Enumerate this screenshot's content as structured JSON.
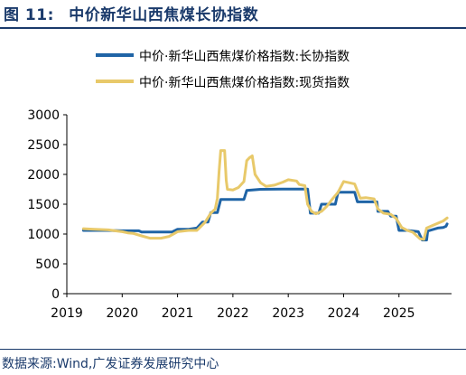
{
  "header": {
    "figure_label": "图 11:",
    "title": "中价新华山西焦煤长协指数"
  },
  "source": "数据来源:Wind,广发证券发展研究中心",
  "colors": {
    "title": "#1a3a6b",
    "series_long": "#1f64a6",
    "series_spot": "#e8c96a",
    "axis": "#000000"
  },
  "chart_data": {
    "type": "line",
    "xlabel": "",
    "ylabel": "",
    "xlim": [
      2019.0,
      2025.95
    ],
    "ylim": [
      0,
      3000
    ],
    "x_ticks": [
      "2019",
      "2020",
      "2021",
      "2022",
      "2023",
      "2024",
      "2025"
    ],
    "y_ticks": [
      "0",
      "500",
      "1000",
      "1500",
      "2000",
      "2500",
      "3000"
    ],
    "grid": false,
    "legend": "top",
    "series": [
      {
        "name": "中价·新华山西焦煤价格指数:长协指数",
        "color": "#1f64a6",
        "points": [
          [
            2019.3,
            1060
          ],
          [
            2019.5,
            1060
          ],
          [
            2019.75,
            1060
          ],
          [
            2020.0,
            1055
          ],
          [
            2020.3,
            1055
          ],
          [
            2020.35,
            1035
          ],
          [
            2020.8,
            1035
          ],
          [
            2020.9,
            1035
          ],
          [
            2021.0,
            1080
          ],
          [
            2021.2,
            1080
          ],
          [
            2021.35,
            1100
          ],
          [
            2021.45,
            1200
          ],
          [
            2021.55,
            1200
          ],
          [
            2021.6,
            1360
          ],
          [
            2021.72,
            1360
          ],
          [
            2021.78,
            1580
          ],
          [
            2022.2,
            1580
          ],
          [
            2022.25,
            1730
          ],
          [
            2022.5,
            1750
          ],
          [
            2022.9,
            1755
          ],
          [
            2023.35,
            1755
          ],
          [
            2023.4,
            1350
          ],
          [
            2023.55,
            1350
          ],
          [
            2023.6,
            1500
          ],
          [
            2023.85,
            1500
          ],
          [
            2023.9,
            1700
          ],
          [
            2024.2,
            1700
          ],
          [
            2024.25,
            1540
          ],
          [
            2024.6,
            1540
          ],
          [
            2024.62,
            1380
          ],
          [
            2024.8,
            1380
          ],
          [
            2024.85,
            1300
          ],
          [
            2024.95,
            1300
          ],
          [
            2025.0,
            1060
          ],
          [
            2025.15,
            1060
          ],
          [
            2025.35,
            1040
          ],
          [
            2025.42,
            900
          ],
          [
            2025.5,
            900
          ],
          [
            2025.52,
            1050
          ],
          [
            2025.7,
            1100
          ],
          [
            2025.8,
            1110
          ],
          [
            2025.85,
            1130
          ],
          [
            2025.87,
            1170
          ]
        ]
      },
      {
        "name": "中价·新华山西焦煤价格指数:现货指数",
        "color": "#e8c96a",
        "points": [
          [
            2019.3,
            1090
          ],
          [
            2019.5,
            1080
          ],
          [
            2019.75,
            1070
          ],
          [
            2020.0,
            1040
          ],
          [
            2020.1,
            1020
          ],
          [
            2020.2,
            1010
          ],
          [
            2020.35,
            970
          ],
          [
            2020.5,
            930
          ],
          [
            2020.7,
            930
          ],
          [
            2020.85,
            960
          ],
          [
            2021.0,
            1040
          ],
          [
            2021.2,
            1060
          ],
          [
            2021.35,
            1060
          ],
          [
            2021.5,
            1200
          ],
          [
            2021.6,
            1350
          ],
          [
            2021.68,
            1420
          ],
          [
            2021.72,
            1600
          ],
          [
            2021.75,
            2050
          ],
          [
            2021.78,
            2400
          ],
          [
            2021.85,
            2400
          ],
          [
            2021.88,
            1900
          ],
          [
            2021.9,
            1750
          ],
          [
            2022.0,
            1740
          ],
          [
            2022.1,
            1780
          ],
          [
            2022.2,
            1880
          ],
          [
            2022.25,
            2230
          ],
          [
            2022.3,
            2280
          ],
          [
            2022.35,
            2310
          ],
          [
            2022.4,
            2000
          ],
          [
            2022.5,
            1860
          ],
          [
            2022.6,
            1800
          ],
          [
            2022.75,
            1820
          ],
          [
            2022.9,
            1870
          ],
          [
            2023.0,
            1910
          ],
          [
            2023.15,
            1890
          ],
          [
            2023.2,
            1830
          ],
          [
            2023.3,
            1810
          ],
          [
            2023.35,
            1500
          ],
          [
            2023.42,
            1380
          ],
          [
            2023.5,
            1340
          ],
          [
            2023.6,
            1380
          ],
          [
            2023.7,
            1470
          ],
          [
            2023.8,
            1590
          ],
          [
            2023.9,
            1700
          ],
          [
            2024.0,
            1880
          ],
          [
            2024.1,
            1860
          ],
          [
            2024.2,
            1840
          ],
          [
            2024.3,
            1600
          ],
          [
            2024.4,
            1610
          ],
          [
            2024.55,
            1590
          ],
          [
            2024.62,
            1420
          ],
          [
            2024.72,
            1350
          ],
          [
            2024.85,
            1330
          ],
          [
            2024.95,
            1260
          ],
          [
            2025.05,
            1110
          ],
          [
            2025.15,
            1060
          ],
          [
            2025.25,
            1030
          ],
          [
            2025.38,
            920
          ],
          [
            2025.45,
            910
          ],
          [
            2025.5,
            1100
          ],
          [
            2025.6,
            1140
          ],
          [
            2025.7,
            1180
          ],
          [
            2025.8,
            1220
          ],
          [
            2025.87,
            1270
          ]
        ]
      }
    ]
  }
}
